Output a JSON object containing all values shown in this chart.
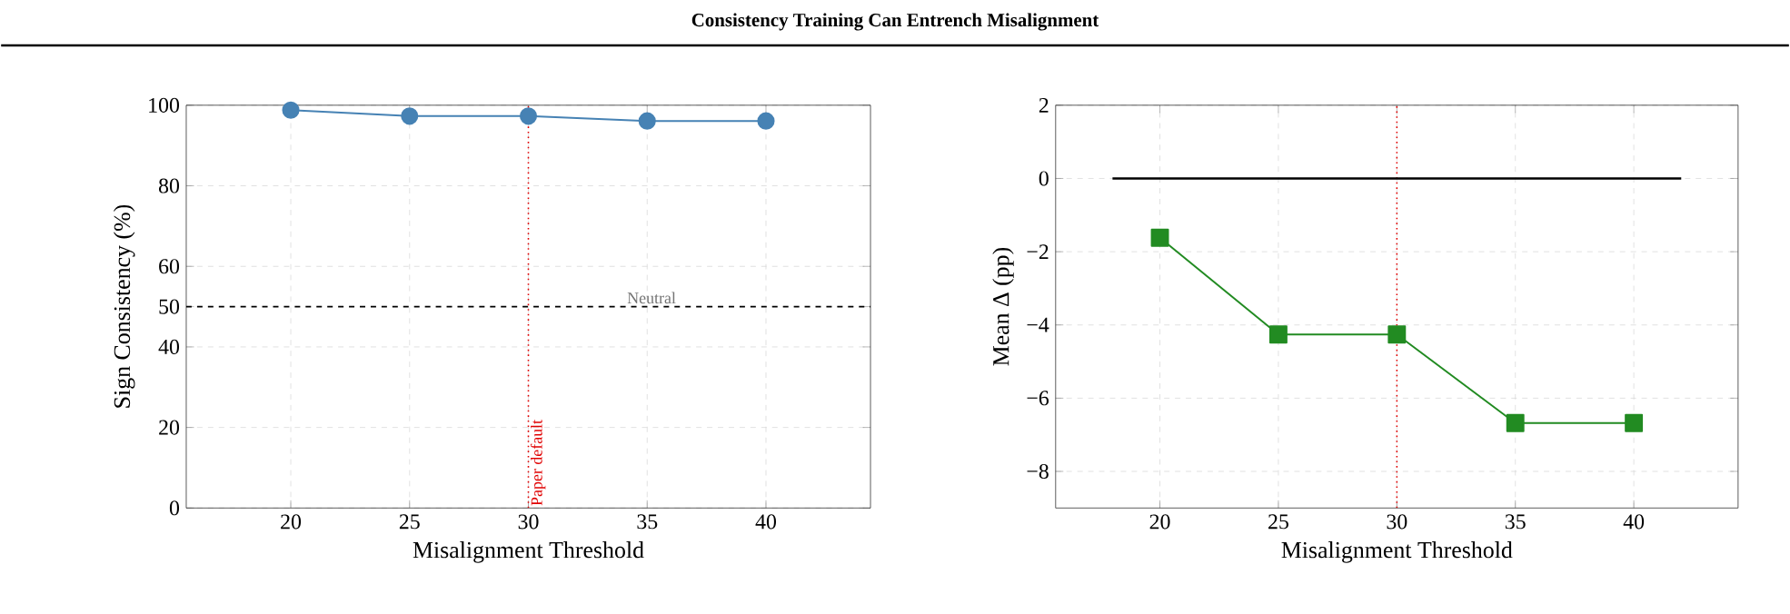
{
  "chart_data": [
    {
      "type": "line",
      "title": "Consistency Training Can Entrench Misalignment",
      "xlabel": "Misalignment Threshold",
      "ylabel": "Sign Consistency (%)",
      "x": [
        20,
        25,
        30,
        35,
        40
      ],
      "series": [
        {
          "color": "#4682b4",
          "marker": "circle",
          "values": [
            98.8,
            97.3,
            97.3,
            96.1,
            96.1
          ]
        }
      ],
      "xlim": [
        15.6,
        44.4
      ],
      "ylim": [
        0,
        100
      ],
      "xticks": [
        20,
        25,
        30,
        35,
        40
      ],
      "yticks": [
        0,
        20,
        40,
        50,
        60,
        80,
        100
      ],
      "grid": true,
      "ref_lines": [
        {
          "axis": "y",
          "value": 50,
          "label": "Neutral",
          "color": "#000000",
          "line_style": "dashed"
        },
        {
          "axis": "x",
          "value": 30,
          "label": "Paper default",
          "color": "#e00000",
          "line_style": "dotted"
        }
      ]
    },
    {
      "type": "line",
      "xlabel": "Misalignment Threshold",
      "ylabel": "Mean Δ (pp)",
      "x": [
        20,
        25,
        30,
        35,
        40
      ],
      "series": [
        {
          "color": "#228b22",
          "marker": "square",
          "values": [
            -1.62,
            -4.26,
            -4.26,
            -6.68,
            -6.68
          ]
        },
        {
          "color": "#000000",
          "marker": "none",
          "x": [
            18,
            42
          ],
          "values": [
            0,
            0
          ]
        }
      ],
      "xlim": [
        15.6,
        44.4
      ],
      "ylim": [
        -9,
        2
      ],
      "xticks": [
        20,
        25,
        30,
        35,
        40
      ],
      "yticks": [
        {
          "value": -8,
          "label": "−8"
        },
        {
          "value": -6,
          "label": "−6"
        },
        {
          "value": -4,
          "label": "−4"
        },
        {
          "value": -2,
          "label": "−2"
        },
        0,
        2
      ],
      "grid": true,
      "ref_lines": [
        {
          "axis": "x",
          "value": 30,
          "color": "#e00000",
          "line_style": "dotted"
        }
      ]
    }
  ]
}
